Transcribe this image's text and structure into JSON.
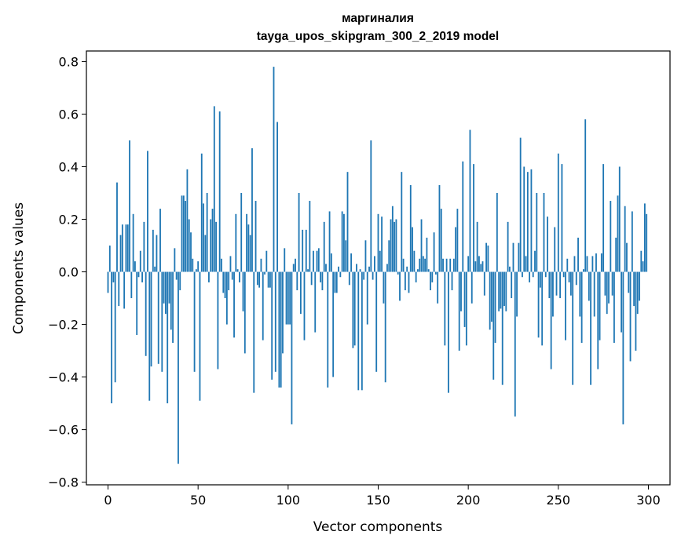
{
  "chart_data": {
    "type": "bar",
    "title": "маргиналия",
    "subtitle": "tayga_upos_skipgram_300_2_2019 model",
    "xlabel": "Vector components",
    "ylabel": "Components values",
    "xlim": [
      -12,
      312
    ],
    "ylim": [
      -0.8,
      0.8
    ],
    "xticks": [
      0,
      50,
      100,
      150,
      200,
      250,
      300
    ],
    "xtick_labels": [
      "0",
      "50",
      "100",
      "150",
      "200",
      "250",
      "300"
    ],
    "yticks": [
      -0.8,
      -0.6,
      -0.4,
      -0.2,
      0.0,
      0.2,
      0.4,
      0.6,
      0.8
    ],
    "ytick_labels": [
      "−0.8",
      "−0.6",
      "−0.4",
      "−0.2",
      "0.0",
      "0.2",
      "0.4",
      "0.6",
      "0.8"
    ],
    "bar_color": "#1f77b4",
    "grid": false,
    "values": [
      -0.08,
      0.1,
      -0.5,
      -0.04,
      -0.42,
      0.34,
      -0.13,
      0.14,
      0.18,
      -0.14,
      0.18,
      0.18,
      0.5,
      -0.1,
      0.22,
      0.04,
      -0.24,
      -0.02,
      0.08,
      -0.04,
      0.19,
      -0.32,
      0.46,
      -0.49,
      -0.36,
      0.16,
      0.02,
      0.14,
      -0.35,
      0.24,
      -0.38,
      -0.12,
      -0.16,
      -0.5,
      -0.12,
      -0.22,
      -0.27,
      0.09,
      -0.03,
      -0.73,
      -0.07,
      0.29,
      0.29,
      0.27,
      0.39,
      0.2,
      0.15,
      0.05,
      -0.38,
      0.01,
      0.04,
      -0.49,
      0.45,
      0.26,
      0.14,
      0.3,
      -0.04,
      0.2,
      0.24,
      0.63,
      0.19,
      -0.37,
      0.61,
      0.05,
      -0.08,
      -0.1,
      -0.2,
      -0.07,
      0.06,
      -0.03,
      -0.25,
      0.22,
      0.01,
      -0.04,
      0.3,
      -0.15,
      -0.31,
      0.22,
      0.18,
      0.14,
      0.47,
      -0.46,
      0.27,
      -0.05,
      -0.06,
      0.05,
      -0.26,
      -0.01,
      0.08,
      -0.06,
      -0.06,
      -0.41,
      0.78,
      -0.38,
      0.57,
      -0.44,
      -0.44,
      -0.31,
      0.09,
      -0.2,
      -0.2,
      -0.2,
      -0.58,
      0.03,
      0.05,
      -0.07,
      0.3,
      -0.16,
      0.16,
      -0.26,
      0.16,
      0.01,
      0.27,
      -0.05,
      0.08,
      -0.23,
      0.08,
      0.09,
      -0.04,
      -0.07,
      0.19,
      0.03,
      -0.44,
      0.23,
      0.07,
      -0.4,
      -0.08,
      -0.08,
      0.02,
      -0.02,
      0.23,
      0.22,
      0.12,
      0.38,
      -0.05,
      0.07,
      -0.29,
      -0.28,
      0.03,
      -0.45,
      0.01,
      -0.45,
      -0.03,
      0.12,
      -0.2,
      0.02,
      0.5,
      -0.03,
      0.06,
      -0.38,
      0.22,
      0.08,
      0.21,
      -0.12,
      -0.42,
      0.03,
      0.12,
      0.2,
      0.25,
      0.19,
      0.2,
      -0.01,
      -0.11,
      0.38,
      0.05,
      -0.07,
      0.02,
      -0.08,
      0.33,
      0.17,
      0.08,
      -0.04,
      0.01,
      0.05,
      0.2,
      0.06,
      0.05,
      0.13,
      0.01,
      -0.07,
      -0.04,
      0.15,
      -0.01,
      -0.12,
      0.33,
      0.24,
      0.05,
      -0.28,
      0.05,
      -0.46,
      0.05,
      -0.07,
      0.05,
      0.17,
      0.24,
      -0.3,
      -0.15,
      0.42,
      -0.21,
      -0.28,
      0.06,
      0.54,
      -0.12,
      0.41,
      0.04,
      0.19,
      0.06,
      0.03,
      0.04,
      -0.09,
      0.11,
      0.1,
      -0.22,
      -0.19,
      -0.41,
      -0.27,
      0.3,
      -0.15,
      -0.14,
      -0.43,
      -0.13,
      -0.15,
      0.19,
      0.02,
      -0.1,
      0.11,
      -0.55,
      -0.17,
      0.11,
      0.51,
      -0.02,
      0.4,
      0.06,
      0.38,
      -0.04,
      0.39,
      -0.02,
      0.08,
      0.3,
      -0.25,
      -0.06,
      -0.28,
      0.3,
      -0.02,
      0.21,
      -0.1,
      -0.37,
      -0.17,
      0.17,
      -0.09,
      0.45,
      -0.1,
      0.41,
      -0.02,
      -0.26,
      0.05,
      -0.04,
      -0.09,
      -0.43,
      0.06,
      -0.05,
      0.13,
      -0.17,
      -0.27,
      0.01,
      0.58,
      0.06,
      -0.11,
      -0.43,
      0.06,
      -0.17,
      0.07,
      -0.37,
      -0.26,
      0.07,
      0.41,
      -0.09,
      -0.16,
      -0.12,
      0.27,
      -0.09,
      -0.27,
      0.13,
      0.29,
      0.4,
      -0.23,
      -0.58,
      0.25,
      0.11,
      -0.08,
      -0.34,
      0.23,
      -0.13,
      -0.3,
      -0.16,
      -0.11,
      0.08,
      0.04,
      0.26,
      0.22
    ]
  }
}
